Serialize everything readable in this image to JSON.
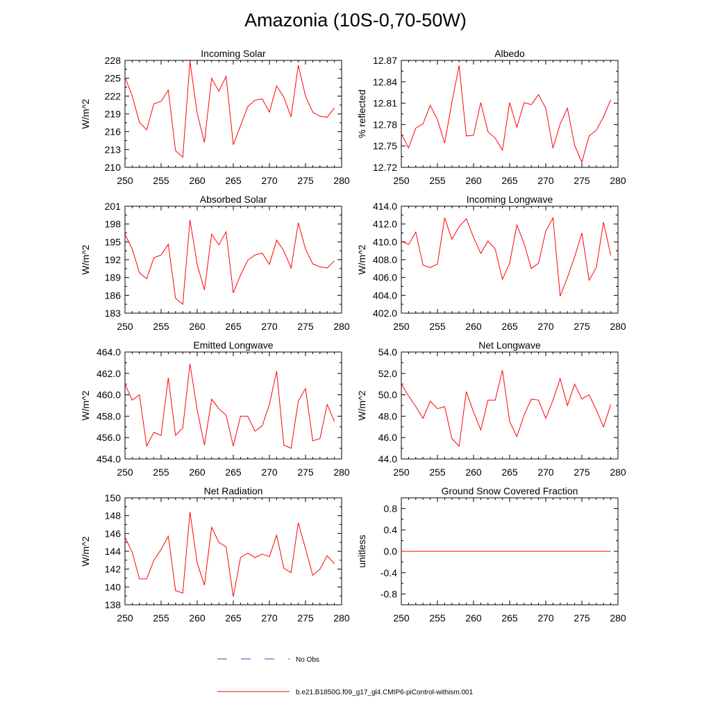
{
  "figure": {
    "title": "Amazonia (10S-0,70-50W)",
    "legend": {
      "no_obs_label": "No Obs",
      "no_obs_color": "#3a46b8",
      "model_label": "b.e21.B1850G.f09_g17_gl4.CMIP6-piControl-withism.001",
      "model_color": "#ff0000"
    }
  },
  "chart_data": [
    {
      "type": "line",
      "title": "Incoming Solar",
      "ylabel": "W/m^2",
      "xlim": [
        250,
        280
      ],
      "ylim": [
        210,
        228
      ],
      "xticks": [
        "250",
        "255",
        "260",
        "265",
        "270",
        "275",
        "280"
      ],
      "yticks": [
        "210",
        "213",
        "216",
        "219",
        "222",
        "225",
        "228"
      ],
      "series": [
        {
          "color": "#ff0000",
          "x": [
            250,
            251,
            252,
            253,
            254,
            255,
            256,
            257,
            258,
            259,
            260,
            261,
            262,
            263,
            264,
            265,
            266,
            267,
            268,
            269,
            270,
            271,
            272,
            273,
            274,
            275,
            276,
            277,
            278,
            279
          ],
          "values": [
            225.2,
            222.0,
            217.6,
            216.3,
            220.7,
            221.1,
            223.0,
            212.8,
            211.7,
            227.8,
            219.1,
            214.2,
            225.0,
            222.8,
            225.3,
            213.8,
            217.0,
            220.2,
            221.3,
            221.5,
            219.3,
            223.7,
            221.8,
            218.5,
            227.2,
            222.0,
            219.3,
            218.6,
            218.4,
            220.0
          ]
        }
      ]
    },
    {
      "type": "line",
      "title": "Albedo",
      "ylabel": "% reflected",
      "xlim": [
        250,
        280
      ],
      "ylim": [
        12.72,
        12.87
      ],
      "xticks": [
        "250",
        "255",
        "260",
        "265",
        "270",
        "275",
        "280"
      ],
      "yticks": [
        "12.72",
        "12.75",
        "12.78",
        "12.81",
        "12.84",
        "12.87"
      ],
      "series": [
        {
          "color": "#ff0000",
          "x": [
            250,
            251,
            252,
            253,
            254,
            255,
            256,
            257,
            258,
            259,
            260,
            261,
            262,
            263,
            264,
            265,
            266,
            267,
            268,
            269,
            270,
            271,
            272,
            273,
            274,
            275,
            276,
            277,
            278,
            279
          ],
          "values": [
            12.767,
            12.747,
            12.775,
            12.781,
            12.807,
            12.787,
            12.754,
            12.811,
            12.863,
            12.764,
            12.765,
            12.811,
            12.77,
            12.761,
            12.744,
            12.811,
            12.776,
            12.811,
            12.808,
            12.822,
            12.803,
            12.747,
            12.781,
            12.803,
            12.751,
            12.727,
            12.764,
            12.772,
            12.791,
            12.815
          ]
        }
      ]
    },
    {
      "type": "line",
      "title": "Absorbed Solar",
      "ylabel": "W/m^2",
      "xlim": [
        250,
        280
      ],
      "ylim": [
        183,
        201
      ],
      "xticks": [
        "250",
        "255",
        "260",
        "265",
        "270",
        "275",
        "280"
      ],
      "yticks": [
        "183",
        "186",
        "189",
        "192",
        "195",
        "198",
        "201"
      ],
      "series": [
        {
          "color": "#ff0000",
          "x": [
            250,
            251,
            252,
            253,
            254,
            255,
            256,
            257,
            258,
            259,
            260,
            261,
            262,
            263,
            264,
            265,
            266,
            267,
            268,
            269,
            270,
            271,
            272,
            273,
            274,
            275,
            276,
            277,
            278,
            279
          ],
          "values": [
            196.3,
            193.8,
            189.8,
            188.8,
            192.3,
            192.8,
            194.6,
            185.5,
            184.5,
            198.7,
            191.2,
            186.9,
            196.3,
            194.5,
            196.7,
            186.4,
            189.4,
            191.9,
            192.8,
            193.1,
            191.2,
            195.3,
            193.5,
            190.6,
            198.2,
            193.8,
            191.3,
            190.8,
            190.6,
            191.8
          ]
        }
      ]
    },
    {
      "type": "line",
      "title": "Incoming Longwave",
      "ylabel": "W/m^2",
      "xlim": [
        250,
        280
      ],
      "ylim": [
        402.0,
        414.0
      ],
      "xticks": [
        "250",
        "255",
        "260",
        "265",
        "270",
        "275",
        "280"
      ],
      "yticks": [
        "402.0",
        "404.0",
        "406.0",
        "408.0",
        "410.0",
        "412.0",
        "414.0"
      ],
      "series": [
        {
          "color": "#ff0000",
          "x": [
            250,
            251,
            252,
            253,
            254,
            255,
            256,
            257,
            258,
            259,
            260,
            261,
            262,
            263,
            264,
            265,
            266,
            267,
            268,
            269,
            270,
            271,
            272,
            273,
            274,
            275,
            276,
            277,
            278,
            279
          ],
          "values": [
            410.1,
            409.7,
            411.1,
            407.4,
            407.1,
            407.5,
            412.7,
            410.3,
            411.7,
            412.6,
            410.5,
            408.7,
            410.1,
            409.2,
            405.8,
            407.6,
            411.9,
            409.8,
            407.0,
            407.6,
            411.2,
            412.7,
            403.9,
            406.0,
            408.3,
            411.0,
            405.7,
            407.1,
            412.2,
            408.5
          ]
        }
      ]
    },
    {
      "type": "line",
      "title": "Emitted Longwave",
      "ylabel": "W/m^2",
      "xlim": [
        250,
        280
      ],
      "ylim": [
        454.0,
        464.0
      ],
      "xticks": [
        "250",
        "255",
        "260",
        "265",
        "270",
        "275",
        "280"
      ],
      "yticks": [
        "454.0",
        "456.0",
        "458.0",
        "460.0",
        "462.0",
        "464.0"
      ],
      "series": [
        {
          "color": "#ff0000",
          "x": [
            250,
            251,
            252,
            253,
            254,
            255,
            256,
            257,
            258,
            259,
            260,
            261,
            262,
            263,
            264,
            265,
            266,
            267,
            268,
            269,
            270,
            271,
            272,
            273,
            274,
            275,
            276,
            277,
            278,
            279
          ],
          "values": [
            461.0,
            459.5,
            460.0,
            455.2,
            456.5,
            456.2,
            461.6,
            456.2,
            456.9,
            462.9,
            458.6,
            455.3,
            459.6,
            458.7,
            458.1,
            455.2,
            458.0,
            458.0,
            456.6,
            457.1,
            459.1,
            462.2,
            455.3,
            455.0,
            459.4,
            460.6,
            455.7,
            455.9,
            459.1,
            457.5
          ]
        }
      ]
    },
    {
      "type": "line",
      "title": "Net Longwave",
      "ylabel": "W/m^2",
      "xlim": [
        250,
        280
      ],
      "ylim": [
        44.0,
        54.0
      ],
      "xticks": [
        "250",
        "255",
        "260",
        "265",
        "270",
        "275",
        "280"
      ],
      "yticks": [
        "44.0",
        "46.0",
        "48.0",
        "50.0",
        "52.0",
        "54.0"
      ],
      "series": [
        {
          "color": "#ff0000",
          "x": [
            250,
            251,
            252,
            253,
            254,
            255,
            256,
            257,
            258,
            259,
            260,
            261,
            262,
            263,
            264,
            265,
            266,
            267,
            268,
            269,
            270,
            271,
            272,
            273,
            274,
            275,
            276,
            277,
            278,
            279
          ],
          "values": [
            51.0,
            49.9,
            48.9,
            47.8,
            49.4,
            48.7,
            48.9,
            45.9,
            45.2,
            50.3,
            48.4,
            46.7,
            49.5,
            49.5,
            52.3,
            47.5,
            46.1,
            48.1,
            49.6,
            49.5,
            47.8,
            49.5,
            51.5,
            49.0,
            51.0,
            49.6,
            50.0,
            48.6,
            47.0,
            49.1
          ]
        }
      ]
    },
    {
      "type": "line",
      "title": "Net Radiation",
      "ylabel": "W/m^2",
      "xlim": [
        250,
        280
      ],
      "ylim": [
        138,
        150
      ],
      "xticks": [
        "250",
        "255",
        "260",
        "265",
        "270",
        "275",
        "280"
      ],
      "yticks": [
        "138",
        "140",
        "142",
        "144",
        "146",
        "148",
        "150"
      ],
      "series": [
        {
          "color": "#ff0000",
          "x": [
            250,
            251,
            252,
            253,
            254,
            255,
            256,
            257,
            258,
            259,
            260,
            261,
            262,
            263,
            264,
            265,
            266,
            267,
            268,
            269,
            270,
            271,
            272,
            273,
            274,
            275,
            276,
            277,
            278,
            279
          ],
          "values": [
            145.6,
            143.9,
            140.9,
            140.9,
            143.0,
            144.2,
            145.7,
            139.6,
            139.3,
            148.4,
            142.7,
            140.2,
            146.7,
            145.0,
            144.5,
            138.9,
            143.3,
            143.8,
            143.3,
            143.7,
            143.4,
            145.8,
            142.1,
            141.6,
            147.2,
            144.3,
            141.3,
            142.0,
            143.5,
            142.6
          ]
        }
      ]
    },
    {
      "type": "line",
      "title": "Ground Snow Covered Fraction",
      "ylabel": "unitless",
      "xlim": [
        250,
        280
      ],
      "ylim": [
        -1.0,
        1.0
      ],
      "xticks": [
        "250",
        "255",
        "260",
        "265",
        "270",
        "275",
        "280"
      ],
      "yticks": [
        "-0.8",
        "-0.4",
        "0.0",
        "0.4",
        "0.8"
      ],
      "ytick_values": [
        -0.8,
        -0.4,
        0.0,
        0.4,
        0.8
      ],
      "series": [
        {
          "color": "#ff0000",
          "x": [
            250,
            279
          ],
          "values": [
            0.0,
            0.0
          ]
        }
      ]
    }
  ]
}
